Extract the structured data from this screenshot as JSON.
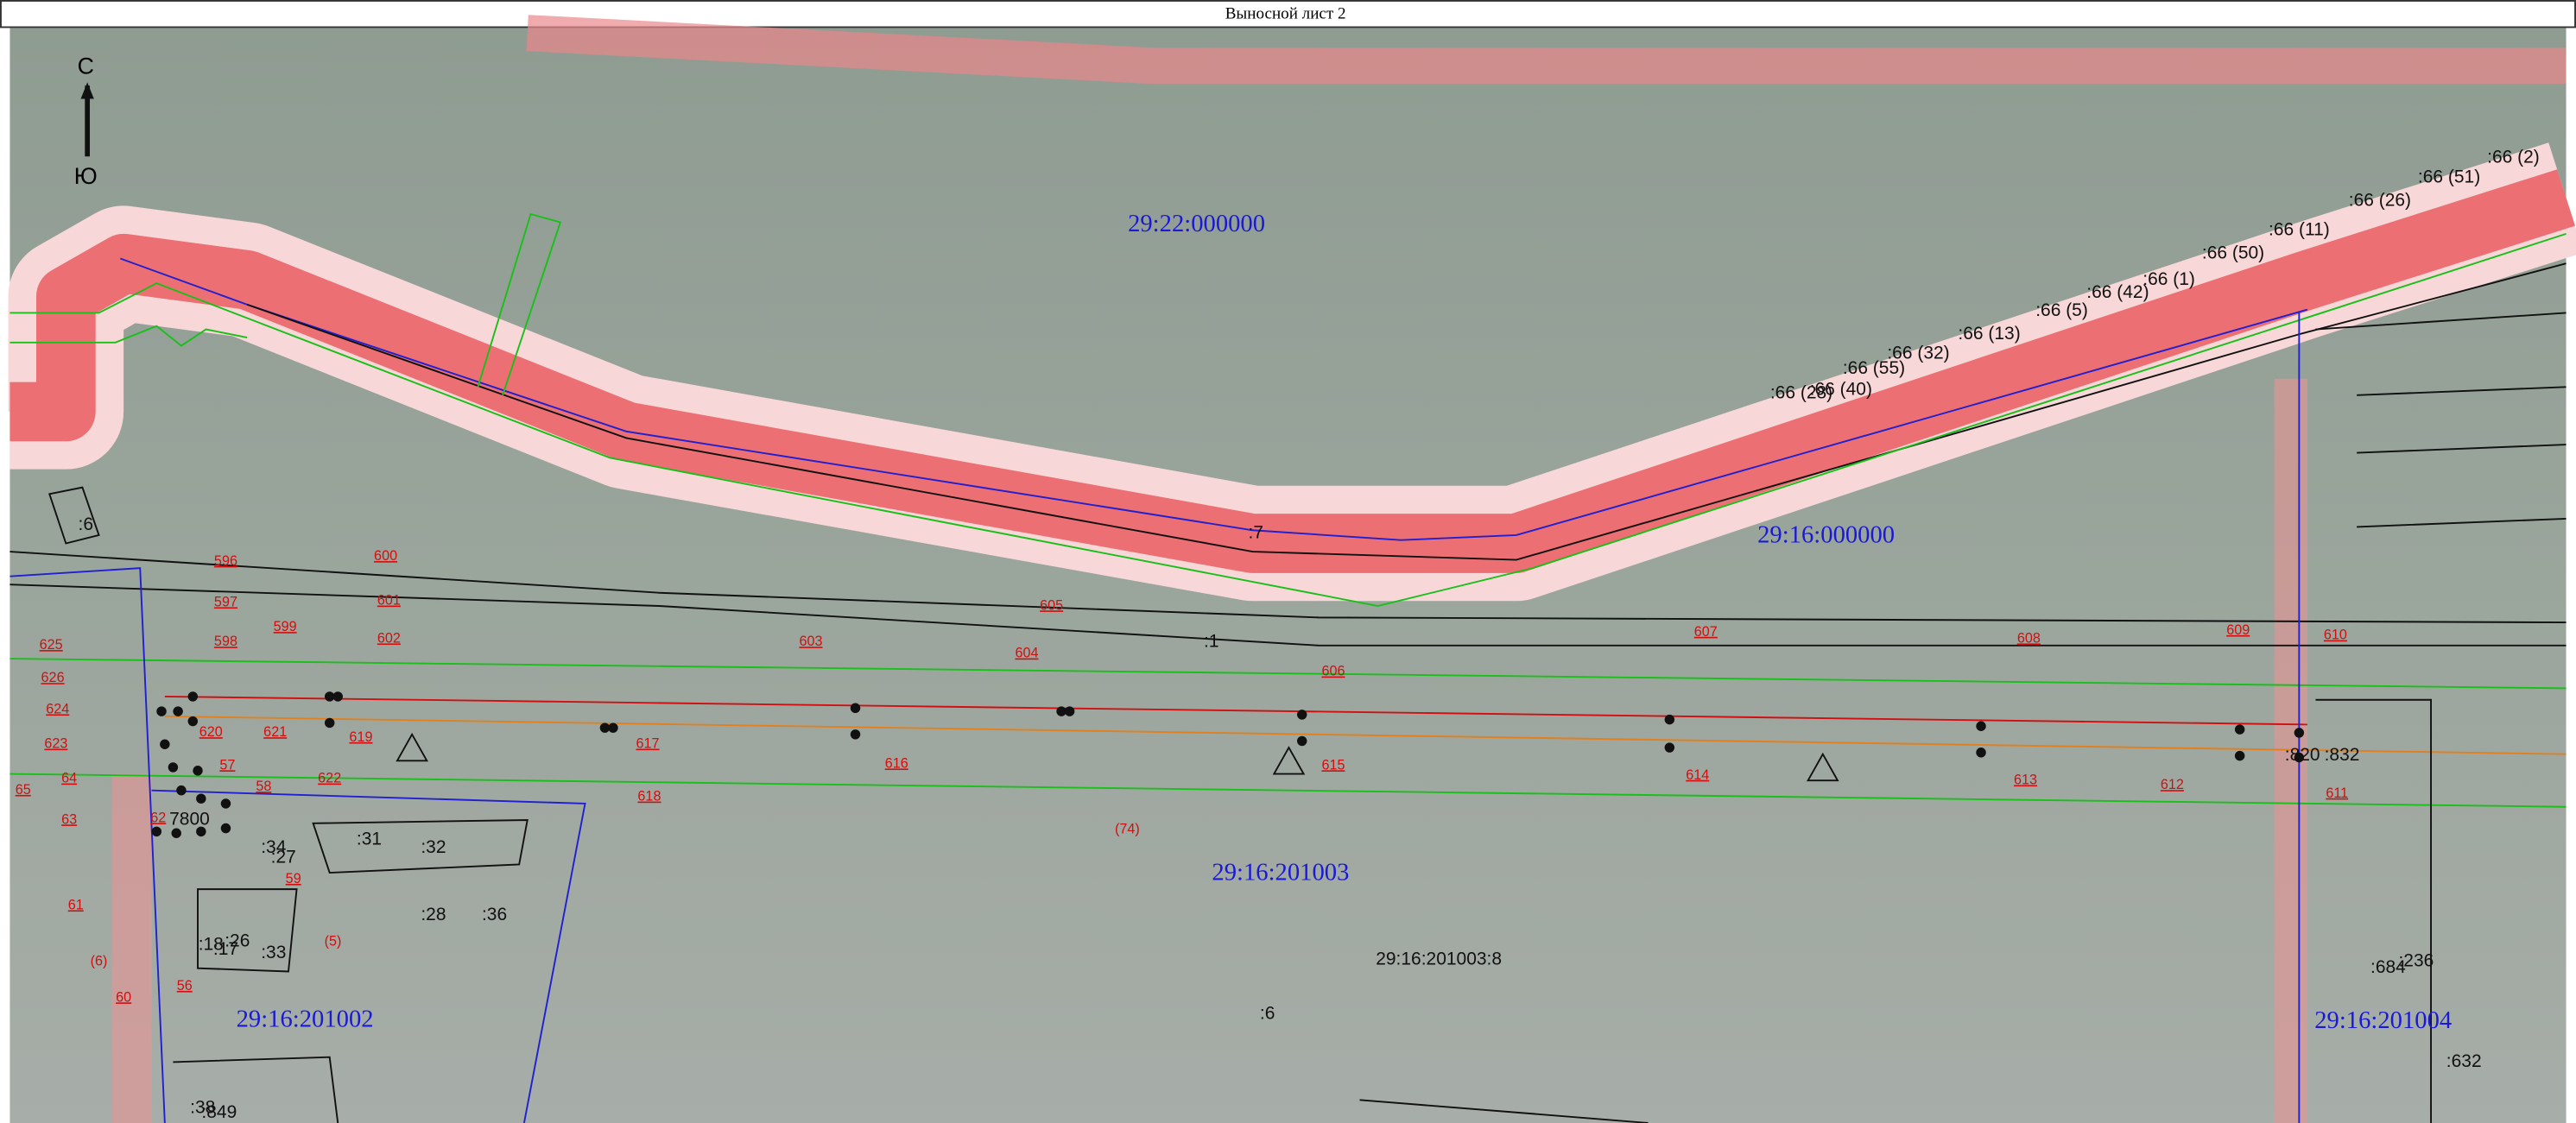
{
  "title": "Выносной лист 2",
  "compass": {
    "north": "С",
    "south": "Ю"
  },
  "quarters": [
    "29:22:000000",
    "29:16:000000",
    "29:16:201003",
    "29:16:201002",
    "29:16:201004"
  ],
  "main_parcel": "29:16:201003:8",
  "parcels": [
    ":7",
    ":1",
    ":6",
    ":6",
    ":34",
    ":27",
    ":31",
    ":32",
    ":28",
    ":36",
    ":18",
    ":26",
    ":17",
    ":33",
    "7800",
    ":684",
    ":236",
    ":632",
    ":820",
    ":832",
    ":38",
    ":849"
  ],
  "parcels_66": [
    ":66 (2)",
    ":66 (51)",
    ":66 (26)",
    ":66 (11)",
    ":66 (50)",
    ":66 (1)",
    ":66 (42)",
    ":66 (5)",
    ":66 (13)",
    ":66 (32)",
    ":66 (55)",
    ":66 (40)",
    ":66 (28)"
  ],
  "points": [
    "596",
    "597",
    "598",
    "599",
    "600",
    "601",
    "602",
    "603",
    "604",
    "605",
    "606",
    "607",
    "608",
    "609",
    "610",
    "611",
    "612",
    "613",
    "614",
    "615",
    "616",
    "617",
    "618",
    "619",
    "620",
    "621",
    "622",
    "623",
    "624",
    "625",
    "626",
    "56",
    "57",
    "58",
    "59",
    "60",
    "61",
    "62",
    "63",
    "64",
    "65",
    "(5)",
    "(6)",
    "(74)"
  ]
}
